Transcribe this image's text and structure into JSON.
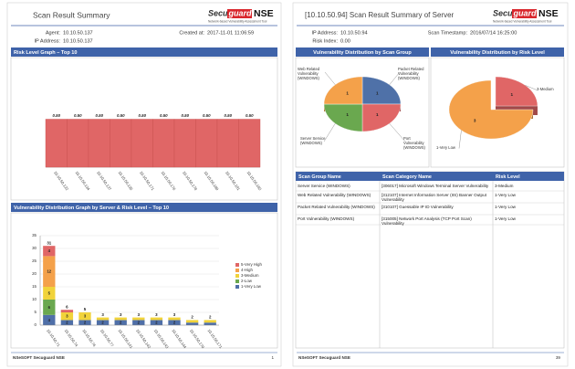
{
  "left_page": {
    "title": "Scan Result Summary",
    "logo": {
      "brand_a": "Secu",
      "brand_b": "guard",
      "product": "NSE",
      "tagline": "Network-based Vulnerability Assessment Tool"
    },
    "info": {
      "agent_label": "Agent:",
      "agent": "10.10.50.137",
      "created_label": "Created at:",
      "created": "2017-11-01  11:06:59",
      "ip_label": "IP Address:",
      "ip": "10.10.50.137"
    },
    "risk_chart": {
      "type": "bar",
      "title": "Risk Level Graph – Top 10",
      "categories": [
        "10.10.50.122",
        "10.10.50.134",
        "10.10.50.137",
        "10.10.50.135",
        "10.10.50.171",
        "10.10.50.176",
        "10.10.50.178",
        "10.10.50.180",
        "10.10.50.181",
        "10.10.50.182"
      ],
      "values": [
        0.5,
        0.5,
        0.5,
        0.5,
        0.5,
        0.5,
        0.5,
        0.5,
        0.5,
        0.5
      ],
      "value_labels": [
        "0.50",
        "0.50",
        "0.50",
        "0.50",
        "0.50",
        "0.50",
        "0.50",
        "0.50",
        "0.50",
        "0.50"
      ],
      "ylim": [
        0,
        1
      ],
      "color": "#e06666"
    },
    "dist_chart": {
      "type": "stacked_bar",
      "title": "Vulnerability Distribution Graph by Server & Risk Level – Top 10",
      "categories": [
        "10.10.50.71",
        "10.10.50.74",
        "10.10.50.76",
        "10.10.50.77",
        "10.10.50.141",
        "10.10.50.142",
        "10.10.50.143",
        "10.10.50.144",
        "10.10.50.170",
        "10.10.50.171"
      ],
      "series": [
        {
          "name": "1-Very Low",
          "color": "#4f6fa8",
          "values": [
            4,
            2,
            2,
            2,
            2,
            2,
            2,
            2,
            1,
            1
          ]
        },
        {
          "name": "2-Low",
          "color": "#6aa84f",
          "values": [
            6,
            0,
            0,
            0,
            0,
            0,
            0,
            0,
            0,
            0
          ]
        },
        {
          "name": "3-Medium",
          "color": "#f1d33a",
          "values": [
            5,
            3,
            3,
            1,
            1,
            1,
            1,
            1,
            1,
            1
          ]
        },
        {
          "name": "4-High",
          "color": "#f4a14a",
          "values": [
            12,
            0,
            0,
            0,
            0,
            0,
            0,
            0,
            0,
            0
          ]
        },
        {
          "name": "5-Very High",
          "color": "#e06666",
          "values": [
            4,
            1,
            0,
            0,
            0,
            0,
            0,
            0,
            0,
            0
          ]
        }
      ],
      "totals": [
        31,
        6,
        5,
        3,
        3,
        3,
        3,
        3,
        2,
        2
      ],
      "ylim": [
        0,
        35
      ],
      "yticks": [
        0,
        5,
        10,
        15,
        20,
        25,
        30,
        35
      ]
    },
    "footer": {
      "brand": "NSeSOFT Secuguard NSE",
      "page": "1"
    }
  },
  "right_page": {
    "title": "[10.10.50.94] Scan Result Summary of Server",
    "logo": {
      "brand_a": "Secu",
      "brand_b": "guard",
      "product": "NSE",
      "tagline": "Network-based Vulnerability Assessment Tool"
    },
    "info": {
      "ip_label": "IP Address:",
      "ip": "10.10.50.94",
      "timestamp_label": "Scan Timestamp:",
      "timestamp": "2016/07/14 16:25:00",
      "risk_label": "Risk Index:",
      "risk": "0.00"
    },
    "group_pie": {
      "type": "pie",
      "title": "Vulnerability Distribution by Scan Group",
      "categories": [
        "Packet Related Vulnerability (WINDOWS)",
        "Port Vulnerability (WINDOWS)",
        "Server Service (WINDOWS)",
        "Web Related Vulnerability (WINDOWS)"
      ],
      "values": [
        1,
        1,
        1,
        1
      ],
      "colors": [
        "#4f71a8",
        "#e06666",
        "#6aa84f",
        "#f4a14a"
      ]
    },
    "risk_pie": {
      "type": "pie",
      "title": "Vulnerability Distribution by Risk Level",
      "categories": [
        "3-Medium",
        "1-Very Low"
      ],
      "values": [
        1,
        3
      ],
      "colors": [
        "#e06666",
        "#f4a14a"
      ]
    },
    "table": {
      "columns": [
        "Scan Group Name",
        "Scan Category Name",
        "Risk Level"
      ],
      "rows": [
        [
          "Server Service (WINDOWS)",
          "[306017] Microsoft Windows Terminal Server Vulnerability",
          "3-Medium"
        ],
        [
          "Web Related Vulnerability (WINDOWS)",
          "[312107] Internet Information Server (IIS) Banner Output Vulnerability",
          "1-Very Low"
        ],
        [
          "Packet Related Vulnerability (WINDOWS)",
          "[310107] Guessable IP ID Vulnerability",
          "1-Very Low"
        ],
        [
          "Port Vulnerability (WINDOWS)",
          "[315005] Network Port Analysis (TCP Port Scan) Vulnerability",
          "1-Very Low"
        ]
      ]
    },
    "footer": {
      "brand": "NSeSOFT Secuguard NSE",
      "page": "39"
    }
  }
}
